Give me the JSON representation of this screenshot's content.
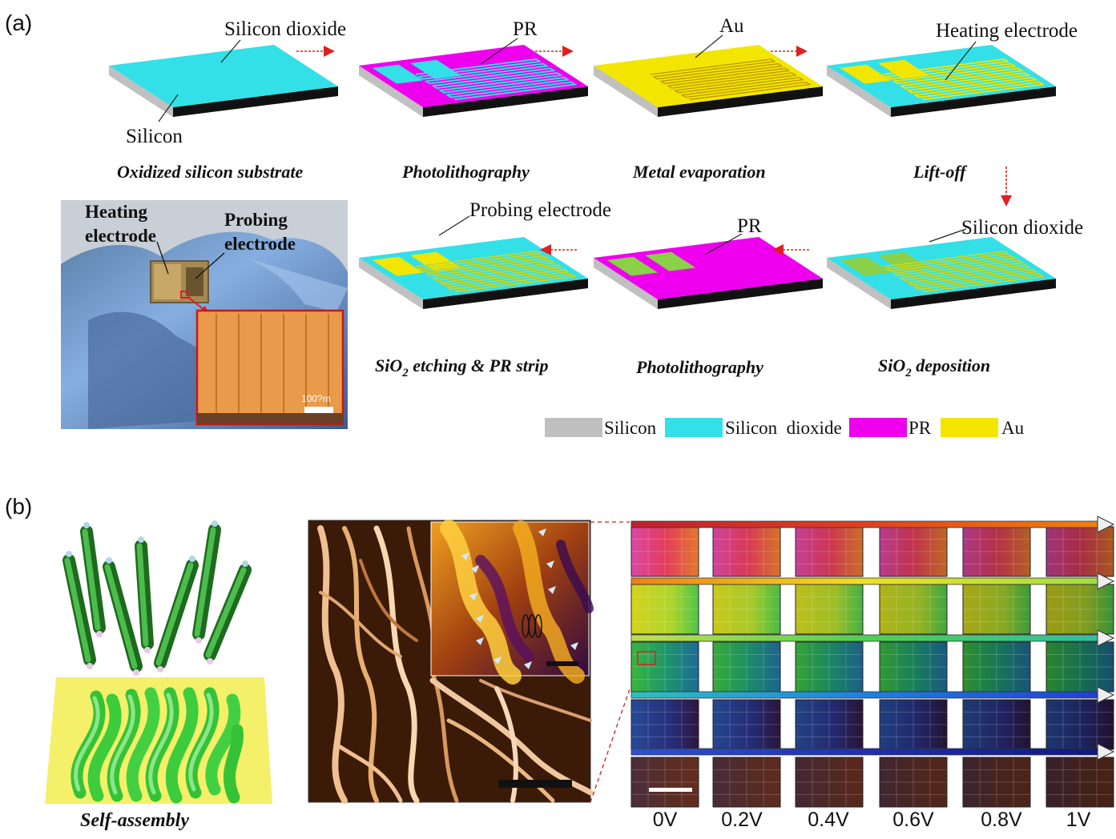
{
  "panel_a": {
    "label": "(a)",
    "steps": [
      {
        "caption": "Oxidized silicon substrate",
        "labels": [
          "Silicon dioxide",
          "Silicon"
        ]
      },
      {
        "caption": "Photolithography",
        "labels": [
          "PR"
        ]
      },
      {
        "caption": "Metal evaporation",
        "labels": [
          "Au"
        ]
      },
      {
        "caption": "Lift-off",
        "labels": [
          "Heating electrode"
        ]
      },
      {
        "caption_pre": "SiO",
        "caption_sub": "2",
        "caption_post": " deposition",
        "labels": [
          "Silicon dioxide"
        ]
      },
      {
        "caption": "Photolithography",
        "labels": [
          "PR"
        ]
      },
      {
        "caption_pre": "SiO",
        "caption_sub": "2",
        "caption_post": " etching & PR strip",
        "labels": [
          "Probing electrode"
        ]
      }
    ],
    "photo": {
      "label1_line1": "Heating",
      "label1_line2": "electrode",
      "label2_line1": "Probing",
      "label2_line2": "electrode",
      "scale": "100?m"
    },
    "legend": [
      {
        "name": "Silicon",
        "color": "#c0c0c0"
      },
      {
        "name": "Silicon  dioxide",
        "color": "#33e0e8"
      },
      {
        "name": "PR",
        "color": "#ee00ee"
      },
      {
        "name": "Au",
        "color": "#f2e600"
      }
    ]
  },
  "panel_b": {
    "label": "(b)",
    "self_assembly": "Self-assembly",
    "voltages": [
      "0V",
      "0.2V",
      "0.4V",
      "0.6V",
      "0.8V",
      "1V"
    ]
  },
  "colors": {
    "silicon": "#c0c0c0",
    "silicon_side": "#9a9a9a",
    "silica": "#33e0e8",
    "pr": "#ee00ee",
    "au": "#f2e600",
    "arrow": "#e02020"
  }
}
